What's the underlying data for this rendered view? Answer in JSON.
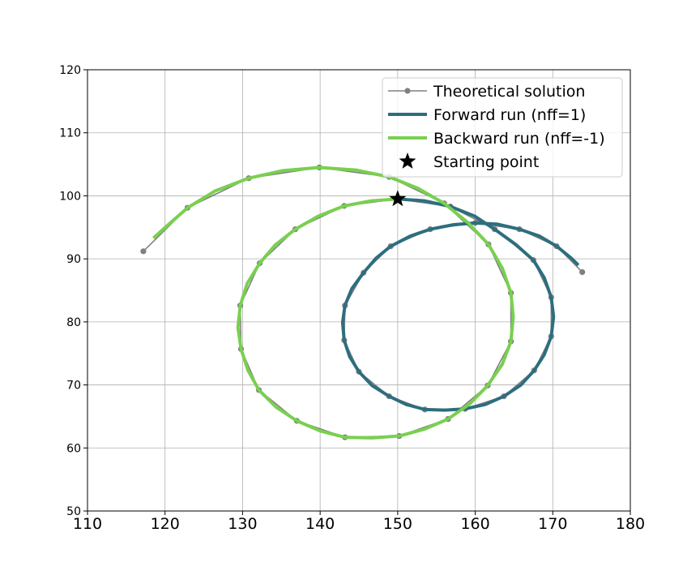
{
  "chart_data": {
    "type": "line",
    "title": "",
    "xlabel": "",
    "ylabel": "",
    "xlim": [
      110,
      180
    ],
    "ylim": [
      50,
      120
    ],
    "xticks": [
      110,
      120,
      130,
      140,
      150,
      160,
      170,
      180
    ],
    "yticks": [
      50,
      60,
      70,
      80,
      90,
      100,
      110,
      120
    ],
    "grid": true,
    "legend_position": "top-right",
    "series": [
      {
        "name": "Theoretical solution",
        "style": "line-with-markers",
        "color": "#808080",
        "points": [
          [
            117.2,
            91.2
          ],
          [
            122.9,
            98.1
          ],
          [
            130.8,
            102.8
          ],
          [
            139.9,
            104.5
          ],
          [
            148.9,
            103.0
          ],
          [
            156.0,
            98.8
          ],
          [
            161.7,
            92.3
          ],
          [
            164.6,
            84.6
          ],
          [
            164.6,
            76.9
          ],
          [
            161.6,
            69.9
          ],
          [
            156.5,
            64.6
          ],
          [
            150.2,
            61.9
          ],
          [
            143.2,
            61.7
          ],
          [
            137.0,
            64.3
          ],
          [
            132.1,
            69.2
          ],
          [
            129.8,
            75.7
          ],
          [
            129.7,
            82.6
          ],
          [
            132.2,
            89.3
          ],
          [
            136.8,
            94.7
          ],
          [
            143.1,
            98.4
          ],
          [
            150.0,
            99.5
          ],
          [
            156.8,
            98.3
          ],
          [
            162.5,
            94.7
          ],
          [
            167.5,
            89.8
          ],
          [
            169.8,
            83.9
          ],
          [
            169.8,
            77.7
          ],
          [
            167.6,
            72.3
          ],
          [
            163.7,
            68.2
          ],
          [
            158.7,
            66.2
          ],
          [
            153.5,
            66.1
          ],
          [
            148.9,
            68.2
          ],
          [
            145.0,
            72.1
          ],
          [
            143.1,
            77.1
          ],
          [
            143.2,
            82.6
          ],
          [
            145.6,
            87.8
          ],
          [
            149.1,
            92.0
          ],
          [
            154.2,
            94.7
          ],
          [
            160.0,
            95.7
          ],
          [
            165.7,
            94.7
          ],
          [
            170.5,
            92.0
          ],
          [
            173.8,
            87.9
          ]
        ]
      },
      {
        "name": "Forward run (nff=1)",
        "style": "line",
        "color": "#2d6e7e",
        "points": [
          [
            150.0,
            99.5
          ],
          [
            153.5,
            99.2
          ],
          [
            156.8,
            98.3
          ],
          [
            159.9,
            96.8
          ],
          [
            162.5,
            94.7
          ],
          [
            165.2,
            92.3
          ],
          [
            167.5,
            89.8
          ],
          [
            168.9,
            87.0
          ],
          [
            169.8,
            83.9
          ],
          [
            170.1,
            80.8
          ],
          [
            169.8,
            77.7
          ],
          [
            168.9,
            74.8
          ],
          [
            167.6,
            72.3
          ],
          [
            165.9,
            70.0
          ],
          [
            163.7,
            68.2
          ],
          [
            161.3,
            66.9
          ],
          [
            158.7,
            66.2
          ],
          [
            156.1,
            66.0
          ],
          [
            153.5,
            66.1
          ],
          [
            151.1,
            66.9
          ],
          [
            148.9,
            68.2
          ],
          [
            146.7,
            69.9
          ],
          [
            145.0,
            72.1
          ],
          [
            143.8,
            74.5
          ],
          [
            143.1,
            77.1
          ],
          [
            142.9,
            79.9
          ],
          [
            143.2,
            82.6
          ],
          [
            144.1,
            85.3
          ],
          [
            145.6,
            87.8
          ],
          [
            147.2,
            90.1
          ],
          [
            149.1,
            92.0
          ],
          [
            151.6,
            93.6
          ],
          [
            154.2,
            94.7
          ],
          [
            157.1,
            95.4
          ],
          [
            160.0,
            95.7
          ],
          [
            162.9,
            95.5
          ],
          [
            165.7,
            94.7
          ],
          [
            168.3,
            93.6
          ],
          [
            170.5,
            92.0
          ],
          [
            172.4,
            90.1
          ],
          [
            173.3,
            89.0
          ]
        ]
      },
      {
        "name": "Backward run (nff=-1)",
        "style": "line",
        "color": "#79d04f",
        "points": [
          [
            150.0,
            99.5
          ],
          [
            146.6,
            99.2
          ],
          [
            143.1,
            98.4
          ],
          [
            139.8,
            96.8
          ],
          [
            136.8,
            94.7
          ],
          [
            134.2,
            92.2
          ],
          [
            132.2,
            89.3
          ],
          [
            130.6,
            86.1
          ],
          [
            129.7,
            82.6
          ],
          [
            129.4,
            79.1
          ],
          [
            129.8,
            75.7
          ],
          [
            130.7,
            72.3
          ],
          [
            132.1,
            69.2
          ],
          [
            134.3,
            66.5
          ],
          [
            137.0,
            64.3
          ],
          [
            140.0,
            62.7
          ],
          [
            143.2,
            61.7
          ],
          [
            146.7,
            61.6
          ],
          [
            150.2,
            61.9
          ],
          [
            153.5,
            63.0
          ],
          [
            156.5,
            64.6
          ],
          [
            159.3,
            67.0
          ],
          [
            161.6,
            69.9
          ],
          [
            163.5,
            73.3
          ],
          [
            164.6,
            76.9
          ],
          [
            164.9,
            80.8
          ],
          [
            164.6,
            84.6
          ],
          [
            163.5,
            88.5
          ],
          [
            161.7,
            92.3
          ],
          [
            159.1,
            95.7
          ],
          [
            156.0,
            98.8
          ],
          [
            152.6,
            101.2
          ],
          [
            148.9,
            103.0
          ],
          [
            144.6,
            104.1
          ],
          [
            139.9,
            104.5
          ],
          [
            135.2,
            104.0
          ],
          [
            130.8,
            102.8
          ],
          [
            126.5,
            100.8
          ],
          [
            122.9,
            98.1
          ],
          [
            120.5,
            95.5
          ],
          [
            118.5,
            93.3
          ]
        ]
      },
      {
        "name": "Starting point",
        "style": "marker",
        "marker": "star",
        "color": "#000000",
        "points": [
          [
            150.0,
            99.5
          ]
        ]
      }
    ]
  }
}
